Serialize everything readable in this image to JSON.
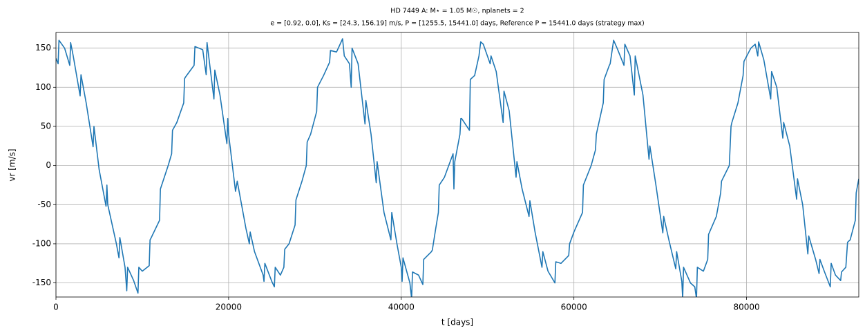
{
  "chart_data": {
    "type": "line",
    "title": "HD 7449 A: M⋆ = 1.05 M☉, nplanets = 2",
    "subtitle": "e = [0.92, 0.0], Ks = [24.3, 156.19] m/s, P = [1255.5, 15441.0] days, Reference P = 15441.0 days (strategy max)",
    "xlabel": "t [days]",
    "ylabel": "vr [m/s]",
    "xlim": [
      0,
      93000
    ],
    "ylim": [
      -168,
      170
    ],
    "xticks": [
      0,
      20000,
      40000,
      60000,
      80000
    ],
    "yticks": [
      -150,
      -100,
      -50,
      0,
      50,
      100,
      150
    ],
    "grid": true,
    "color": "#1f77b4",
    "x": [
      0,
      250,
      350,
      1000,
      1600,
      1700,
      2000,
      2800,
      2900,
      3500,
      4300,
      4400,
      5000,
      5800,
      5900,
      6000,
      7000,
      7300,
      7400,
      8000,
      8200,
      8300,
      9000,
      9500,
      9600,
      10000,
      10800,
      10900,
      11000,
      12000,
      12100,
      13000,
      13400,
      13500,
      14000,
      14800,
      14900,
      15000,
      16000,
      16100,
      17000,
      17400,
      17500,
      18300,
      18400,
      19000,
      19800,
      19900,
      20000,
      20800,
      21000,
      22000,
      22400,
      22500,
      23000,
      24000,
      24100,
      24200,
      25000,
      25300,
      25400,
      26000,
      26400,
      26500,
      27000,
      27700,
      27800,
      28500,
      29000,
      29100,
      29500,
      30200,
      30300,
      31000,
      31700,
      31800,
      32500,
      33000,
      33200,
      33400,
      34000,
      34200,
      34300,
      35000,
      35800,
      35900,
      36500,
      37100,
      37200,
      38000,
      38800,
      38900,
      39500,
      40000,
      40100,
      40200,
      41000,
      41200,
      41300,
      42000,
      42500,
      42600,
      43500,
      43600,
      44000,
      44300,
      44400,
      45000,
      46000,
      46100,
      46200,
      46800,
      46900,
      47000,
      47900,
      48000,
      48500,
      49000,
      49200,
      49500,
      50300,
      50400,
      51000,
      51800,
      51900,
      52500,
      53300,
      53400,
      54000,
      54800,
      54900,
      55500,
      56300,
      56400,
      57000,
      57800,
      57900,
      58500,
      59400,
      59500,
      60000,
      61000,
      61100,
      62000,
      62500,
      62600,
      63000,
      63400,
      63500,
      64100,
      64200,
      64600,
      65000,
      65800,
      65900,
      66500,
      67000,
      67100,
      68000,
      68700,
      68800,
      69500,
      70300,
      70400,
      71000,
      71800,
      71900,
      72500,
      72600,
      72700,
      73500,
      74000,
      74200,
      74300,
      75000,
      75500,
      75600,
      76500,
      77000,
      77100,
      78000,
      78200,
      78300,
      79000,
      79600,
      79700,
      80500,
      81000,
      81300,
      81400,
      82000,
      82800,
      82900,
      83500,
      84200,
      84300,
      85000,
      85800,
      85900,
      86500,
      87100,
      87200,
      88000,
      88400,
      88500,
      89000,
      89700,
      89800,
      90300,
      90900,
      91000,
      91500,
      91700,
      92000,
      92600,
      92700,
      93000
    ],
    "values": [
      137,
      130,
      160,
      150,
      128,
      157,
      140,
      89,
      116,
      80,
      24,
      50,
      -5,
      -52,
      -25,
      -50,
      -100,
      -118,
      -92,
      -130,
      -160,
      -130,
      -147,
      -163,
      -130,
      -135,
      -128,
      -95,
      -93,
      -70,
      -30,
      0,
      15,
      45,
      55,
      80,
      111,
      113,
      128,
      152,
      148,
      116,
      157,
      85,
      122,
      90,
      28,
      60,
      40,
      -33,
      -20,
      -80,
      -100,
      -85,
      -110,
      -140,
      -148,
      -125,
      -148,
      -155,
      -130,
      -140,
      -130,
      -107,
      -100,
      -76,
      -44,
      -20,
      0,
      30,
      40,
      69,
      100,
      115,
      132,
      147,
      145,
      157,
      162,
      140,
      130,
      100,
      150,
      130,
      53,
      83,
      40,
      -22,
      5,
      -60,
      -95,
      -60,
      -100,
      -130,
      -148,
      -118,
      -150,
      -170,
      -136,
      -140,
      -152,
      -120,
      -110,
      -108,
      -80,
      -60,
      -25,
      -15,
      15,
      -30,
      5,
      40,
      60,
      60,
      45,
      110,
      115,
      140,
      158,
      155,
      130,
      140,
      120,
      55,
      95,
      70,
      -15,
      5,
      -30,
      -65,
      -45,
      -85,
      -130,
      -110,
      -135,
      -150,
      -123,
      -125,
      -115,
      -100,
      -85,
      -60,
      -25,
      0,
      20,
      40,
      60,
      80,
      110,
      128,
      130,
      160,
      150,
      128,
      155,
      140,
      90,
      140,
      90,
      8,
      25,
      -25,
      -86,
      -65,
      -95,
      -132,
      -110,
      -148,
      -170,
      -130,
      -150,
      -155,
      -170,
      -130,
      -135,
      -120,
      -88,
      -65,
      -35,
      -20,
      0,
      50,
      55,
      80,
      115,
      133,
      150,
      155,
      140,
      158,
      135,
      85,
      120,
      100,
      35,
      55,
      25,
      -43,
      -17,
      -50,
      -113,
      -90,
      -120,
      -138,
      -120,
      -135,
      -155,
      -125,
      -140,
      -147,
      -136,
      -130,
      -98,
      -95,
      -70,
      -35,
      -17
    ]
  }
}
